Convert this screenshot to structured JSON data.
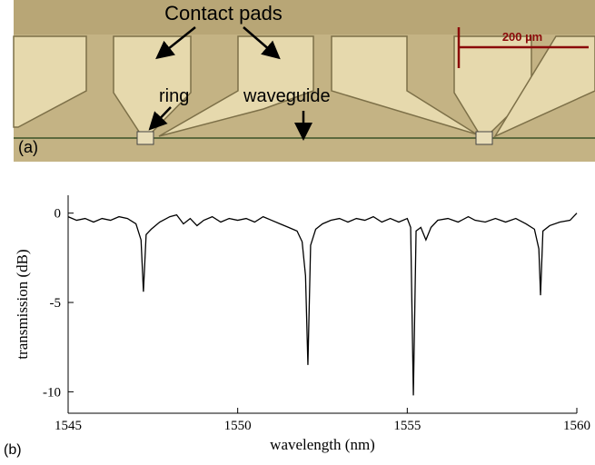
{
  "panel_a": {
    "label": "(a)",
    "contact_pads": "Contact pads",
    "ring": "ring",
    "waveguide": "waveguide",
    "scale_bar": "200 µm"
  },
  "panel_b_label": "(b)",
  "chart_data": {
    "type": "line",
    "xlabel": "wavelength (nm)",
    "ylabel": "transmission (dB)",
    "x": [
      1545.0,
      1545.25,
      1545.5,
      1545.75,
      1546.0,
      1546.25,
      1546.5,
      1546.75,
      1547.0,
      1547.15,
      1547.22,
      1547.3,
      1547.45,
      1547.7,
      1548.0,
      1548.2,
      1548.4,
      1548.6,
      1548.8,
      1549.0,
      1549.25,
      1549.5,
      1549.75,
      1550.0,
      1550.25,
      1550.5,
      1550.75,
      1551.0,
      1551.25,
      1551.5,
      1551.75,
      1551.9,
      1552.0,
      1552.07,
      1552.15,
      1552.3,
      1552.5,
      1552.75,
      1553.0,
      1553.25,
      1553.5,
      1553.75,
      1554.0,
      1554.25,
      1554.5,
      1554.75,
      1555.0,
      1555.1,
      1555.18,
      1555.26,
      1555.4,
      1555.55,
      1555.7,
      1555.9,
      1556.2,
      1556.5,
      1556.8,
      1557.0,
      1557.3,
      1557.6,
      1557.9,
      1558.2,
      1558.5,
      1558.75,
      1558.88,
      1558.93,
      1559.0,
      1559.2,
      1559.5,
      1559.8,
      1560.0
    ],
    "values": [
      -0.2,
      -0.4,
      -0.3,
      -0.5,
      -0.3,
      -0.4,
      -0.2,
      -0.3,
      -0.6,
      -1.5,
      -4.4,
      -1.2,
      -0.9,
      -0.5,
      -0.2,
      -0.1,
      -0.6,
      -0.3,
      -0.7,
      -0.4,
      -0.2,
      -0.5,
      -0.3,
      -0.4,
      -0.3,
      -0.5,
      -0.2,
      -0.4,
      -0.6,
      -0.8,
      -1.0,
      -1.6,
      -3.5,
      -8.5,
      -1.8,
      -0.9,
      -0.6,
      -0.4,
      -0.3,
      -0.5,
      -0.3,
      -0.4,
      -0.2,
      -0.5,
      -0.3,
      -0.5,
      -0.3,
      -0.8,
      -10.2,
      -1.0,
      -0.8,
      -1.5,
      -0.8,
      -0.4,
      -0.3,
      -0.5,
      -0.2,
      -0.4,
      -0.5,
      -0.3,
      -0.5,
      -0.3,
      -0.6,
      -0.9,
      -2.0,
      -4.6,
      -1.0,
      -0.7,
      -0.5,
      -0.4,
      0.0
    ],
    "color": "#000000",
    "xlim": [
      1545,
      1560
    ],
    "xticks": [
      1545,
      1550,
      1555,
      1560
    ],
    "ylim": [
      -11.2,
      1
    ],
    "yticks": [
      0,
      -5,
      -10
    ]
  }
}
